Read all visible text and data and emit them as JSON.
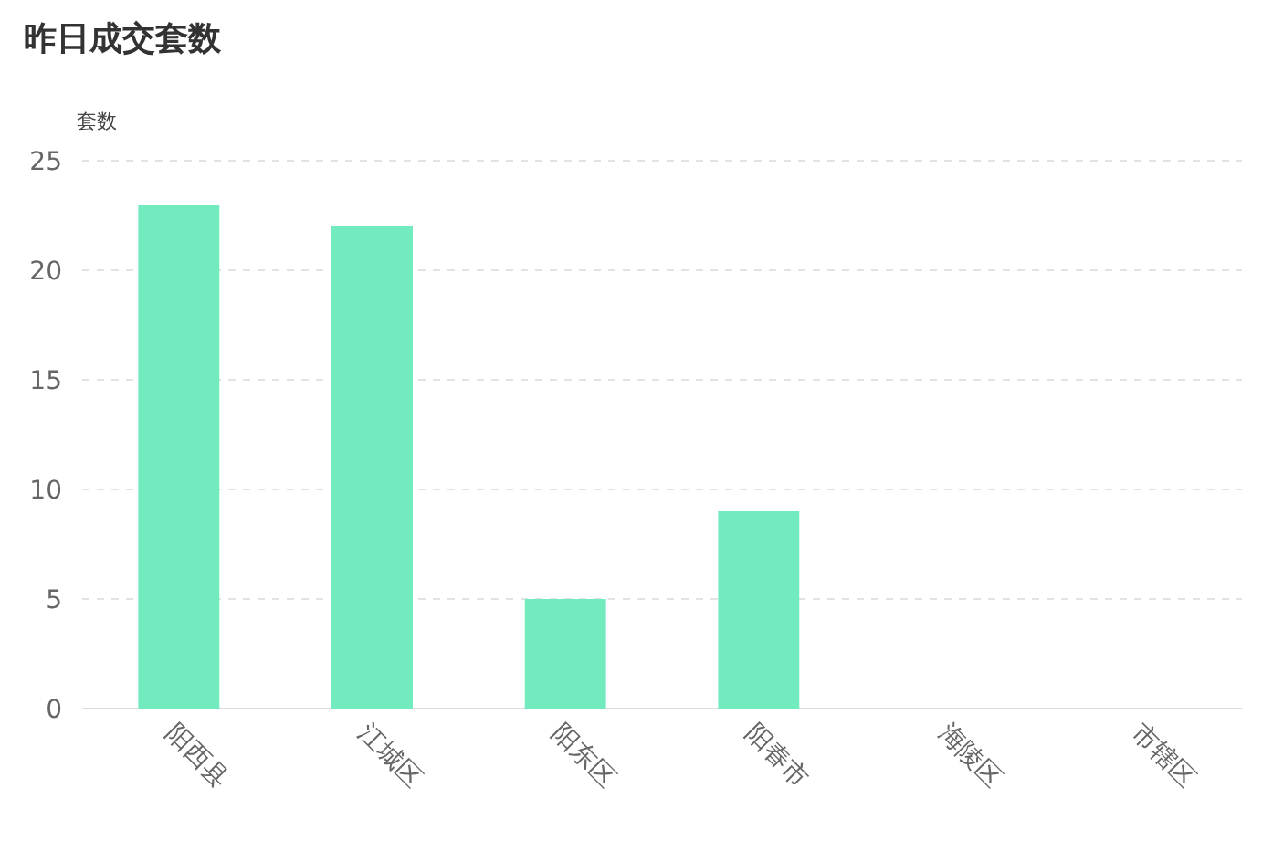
{
  "chart_data": {
    "type": "bar",
    "title": "昨日成交套数",
    "ylabel": "套数",
    "categories": [
      "阳西县",
      "江城区",
      "阳东区",
      "阳春市",
      "海陵区",
      "市辖区"
    ],
    "values": [
      23,
      22,
      5,
      9,
      0,
      0
    ],
    "color": "#72ecbe",
    "ylim": [
      0,
      25
    ],
    "yticks": [
      0,
      5,
      10,
      15,
      20,
      25
    ],
    "grid": "y"
  }
}
